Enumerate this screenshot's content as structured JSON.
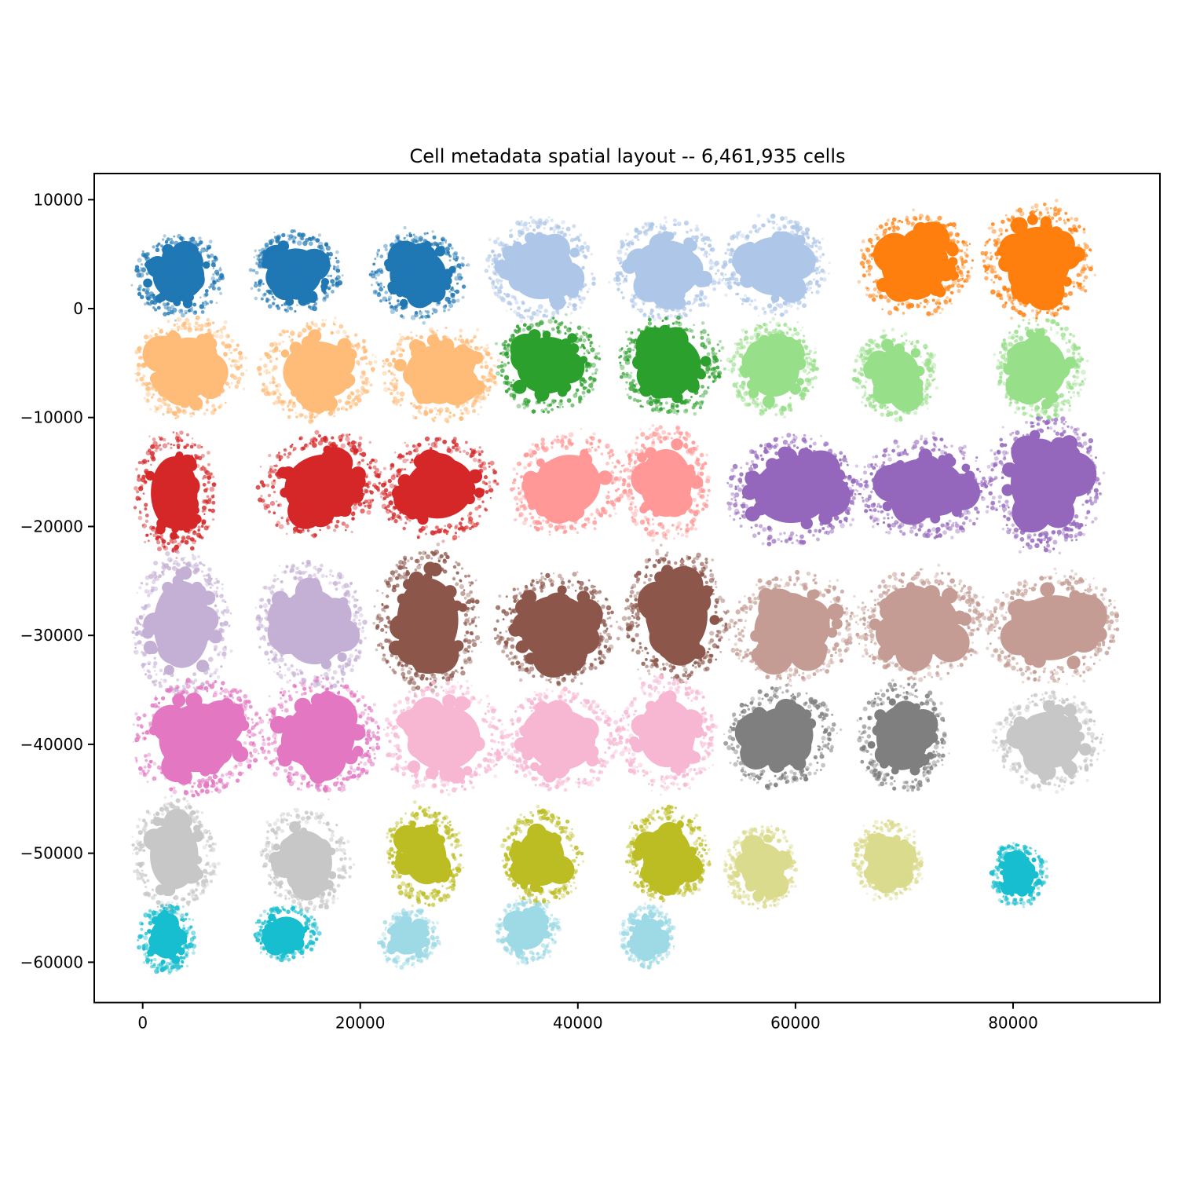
{
  "title": "Cell metadata spatial layout -- 6,461,935 cells",
  "total_cells_label": "6,461,935",
  "chart_data": {
    "type": "scatter",
    "title": "Cell metadata spatial layout -- 6,461,935 cells",
    "xlabel": "",
    "ylabel": "",
    "grid": false,
    "legend": "none",
    "background": "#ffffff",
    "xlim": [
      -4450,
      93500
    ],
    "ylim": [
      -63700,
      12400
    ],
    "x_ticks": {
      "values": [
        0,
        20000,
        40000,
        60000,
        80000
      ],
      "labels": [
        "0",
        "20000",
        "40000",
        "60000",
        "80000"
      ]
    },
    "y_ticks": {
      "values": [
        10000,
        0,
        -10000,
        -20000,
        -30000,
        -40000,
        -50000,
        -60000
      ],
      "labels": [
        "10000",
        "0",
        "−10000",
        "−20000",
        "−30000",
        "−40000",
        "−50000",
        "−60000"
      ]
    },
    "palette": [
      "#1f77b4",
      "#aec7e8",
      "#ff7f0e",
      "#ffbb78",
      "#2ca02c",
      "#98df8a",
      "#d62728",
      "#ff9896",
      "#9467bd",
      "#c5b0d5",
      "#8c564b",
      "#c49c94",
      "#e377c2",
      "#f7b6d2",
      "#7f7f7f",
      "#c7c7c7",
      "#bcbd22",
      "#dbdb8d",
      "#17becf",
      "#9edae5"
    ],
    "clusters": [
      {
        "x": 3300,
        "y": 3000,
        "rx": 3200,
        "ry": 3000,
        "rot": 0,
        "color": "#1f77b4"
      },
      {
        "x": 14100,
        "y": 3300,
        "rx": 3200,
        "ry": 3000,
        "rot": 0,
        "color": "#1f77b4"
      },
      {
        "x": 25300,
        "y": 3100,
        "rx": 3500,
        "ry": 3200,
        "rot": 0,
        "color": "#1f77b4"
      },
      {
        "x": 36600,
        "y": 3600,
        "rx": 4000,
        "ry": 3700,
        "rot": 0,
        "color": "#aec7e8"
      },
      {
        "x": 48200,
        "y": 3600,
        "rx": 4000,
        "ry": 3600,
        "rot": 0,
        "color": "#aec7e8"
      },
      {
        "x": 58000,
        "y": 3900,
        "rx": 3800,
        "ry": 3600,
        "rot": 0,
        "color": "#aec7e8"
      },
      {
        "x": 71000,
        "y": 4000,
        "rx": 4200,
        "ry": 3700,
        "rot": -15,
        "color": "#ff7f0e"
      },
      {
        "x": 82300,
        "y": 4400,
        "rx": 4000,
        "ry": 4200,
        "rot": 0,
        "color": "#ff7f0e"
      },
      {
        "x": 4200,
        "y": -5400,
        "rx": 4000,
        "ry": 3700,
        "rot": -10,
        "color": "#ffbb78"
      },
      {
        "x": 16000,
        "y": -5700,
        "rx": 4200,
        "ry": 3600,
        "rot": -10,
        "color": "#ffbb78"
      },
      {
        "x": 27300,
        "y": -5900,
        "rx": 4200,
        "ry": 3500,
        "rot": 0,
        "color": "#ffbb78"
      },
      {
        "x": 37200,
        "y": -5200,
        "rx": 3800,
        "ry": 3500,
        "rot": -15,
        "color": "#2ca02c"
      },
      {
        "x": 48500,
        "y": -5200,
        "rx": 3800,
        "ry": 3600,
        "rot": 0,
        "color": "#2ca02c"
      },
      {
        "x": 58000,
        "y": -5500,
        "rx": 3200,
        "ry": 3500,
        "rot": 0,
        "color": "#98df8a"
      },
      {
        "x": 69200,
        "y": -6100,
        "rx": 3000,
        "ry": 3200,
        "rot": 0,
        "color": "#98df8a"
      },
      {
        "x": 82500,
        "y": -5500,
        "rx": 3200,
        "ry": 3700,
        "rot": 0,
        "color": "#98df8a"
      },
      {
        "x": 2900,
        "y": -16900,
        "rx": 2900,
        "ry": 4500,
        "rot": 0,
        "color": "#d62728"
      },
      {
        "x": 16300,
        "y": -16200,
        "rx": 4500,
        "ry": 3700,
        "rot": -20,
        "color": "#d62728"
      },
      {
        "x": 27300,
        "y": -16500,
        "rx": 4300,
        "ry": 3700,
        "rot": -15,
        "color": "#d62728"
      },
      {
        "x": 39000,
        "y": -16200,
        "rx": 4200,
        "ry": 3700,
        "rot": -20,
        "color": "#ff9896"
      },
      {
        "x": 48100,
        "y": -16000,
        "rx": 3200,
        "ry": 4200,
        "rot": 0,
        "color": "#ff9896"
      },
      {
        "x": 59800,
        "y": -16700,
        "rx": 4900,
        "ry": 4000,
        "rot": -8,
        "color": "#9467bd"
      },
      {
        "x": 71900,
        "y": -16500,
        "rx": 4900,
        "ry": 3700,
        "rot": 0,
        "color": "#9467bd"
      },
      {
        "x": 82900,
        "y": -16000,
        "rx": 4200,
        "ry": 5000,
        "rot": 0,
        "color": "#9467bd"
      },
      {
        "x": 3600,
        "y": -29000,
        "rx": 3500,
        "ry": 5400,
        "rot": 0,
        "color": "#c5b0d5"
      },
      {
        "x": 15600,
        "y": -29200,
        "rx": 4000,
        "ry": 4700,
        "rot": -10,
        "color": "#c5b0d5"
      },
      {
        "x": 26200,
        "y": -28600,
        "rx": 3800,
        "ry": 5200,
        "rot": 0,
        "color": "#8c564b"
      },
      {
        "x": 38000,
        "y": -29300,
        "rx": 4500,
        "ry": 4000,
        "rot": 0,
        "color": "#8c564b"
      },
      {
        "x": 49100,
        "y": -28200,
        "rx": 3800,
        "ry": 4900,
        "rot": 0,
        "color": "#8c564b"
      },
      {
        "x": 59700,
        "y": -29300,
        "rx": 4700,
        "ry": 4000,
        "rot": -8,
        "color": "#c49c94"
      },
      {
        "x": 71500,
        "y": -29000,
        "rx": 4700,
        "ry": 4000,
        "rot": -10,
        "color": "#c49c94"
      },
      {
        "x": 83600,
        "y": -29300,
        "rx": 4900,
        "ry": 4000,
        "rot": -10,
        "color": "#c49c94"
      },
      {
        "x": 5100,
        "y": -39400,
        "rx": 4900,
        "ry": 4200,
        "rot": -15,
        "color": "#e377c2"
      },
      {
        "x": 16300,
        "y": -39300,
        "rx": 4300,
        "ry": 4200,
        "rot": 0,
        "color": "#e377c2"
      },
      {
        "x": 27700,
        "y": -39400,
        "rx": 4500,
        "ry": 4000,
        "rot": 0,
        "color": "#f7b6d2"
      },
      {
        "x": 38500,
        "y": -39600,
        "rx": 4200,
        "ry": 3700,
        "rot": 0,
        "color": "#f7b6d2"
      },
      {
        "x": 48200,
        "y": -39000,
        "rx": 3500,
        "ry": 4200,
        "rot": 0,
        "color": "#f7b6d2"
      },
      {
        "x": 58700,
        "y": -39300,
        "rx": 4000,
        "ry": 3600,
        "rot": -20,
        "color": "#7f7f7f"
      },
      {
        "x": 69800,
        "y": -39400,
        "rx": 3200,
        "ry": 4000,
        "rot": 0,
        "color": "#7f7f7f"
      },
      {
        "x": 83300,
        "y": -39600,
        "rx": 4000,
        "ry": 3500,
        "rot": 0,
        "color": "#c7c7c7"
      },
      {
        "x": 2900,
        "y": -50200,
        "rx": 3000,
        "ry": 4200,
        "rot": 0,
        "color": "#c7c7c7"
      },
      {
        "x": 15000,
        "y": -50600,
        "rx": 3200,
        "ry": 3700,
        "rot": -20,
        "color": "#c7c7c7"
      },
      {
        "x": 25900,
        "y": -50200,
        "rx": 2700,
        "ry": 3600,
        "rot": -10,
        "color": "#bcbd22"
      },
      {
        "x": 36600,
        "y": -50400,
        "rx": 2900,
        "ry": 3500,
        "rot": 0,
        "color": "#bcbd22"
      },
      {
        "x": 48200,
        "y": -50200,
        "rx": 3000,
        "ry": 3500,
        "rot": 0,
        "color": "#bcbd22"
      },
      {
        "x": 57000,
        "y": -51300,
        "rx": 2700,
        "ry": 3000,
        "rot": 0,
        "color": "#dbdb8d"
      },
      {
        "x": 68500,
        "y": -50600,
        "rx": 2500,
        "ry": 2900,
        "rot": 0,
        "color": "#dbdb8d"
      },
      {
        "x": 80500,
        "y": -51900,
        "rx": 2000,
        "ry": 2300,
        "rot": 0,
        "color": "#17becf"
      },
      {
        "x": 2200,
        "y": -57800,
        "rx": 2000,
        "ry": 2500,
        "rot": 0,
        "color": "#17becf"
      },
      {
        "x": 13200,
        "y": -57300,
        "rx": 2300,
        "ry": 2000,
        "rot": 0,
        "color": "#17becf"
      },
      {
        "x": 24400,
        "y": -57800,
        "rx": 2200,
        "ry": 2000,
        "rot": -15,
        "color": "#9edae5"
      },
      {
        "x": 35400,
        "y": -57100,
        "rx": 2200,
        "ry": 2300,
        "rot": 0,
        "color": "#9edae5"
      },
      {
        "x": 46400,
        "y": -57600,
        "rx": 1900,
        "ry": 2200,
        "rot": 0,
        "color": "#9edae5"
      }
    ]
  }
}
